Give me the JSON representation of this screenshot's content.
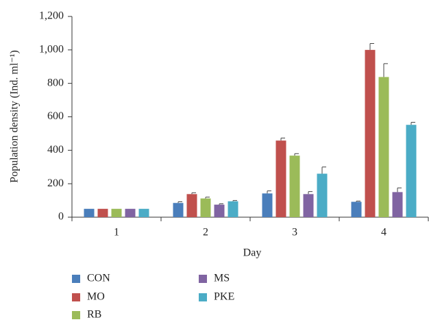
{
  "chart_data": {
    "type": "bar",
    "y_label": "Population density (Ind. ml⁻¹)",
    "x_label": "Day",
    "categories": [
      "1",
      "2",
      "3",
      "4"
    ],
    "series": [
      {
        "name": "CON",
        "color": "#4a7ebb",
        "values": [
          50,
          85,
          142,
          92
        ],
        "errors": [
          null,
          7,
          15,
          4
        ]
      },
      {
        "name": "MO",
        "color": "#c0504d",
        "values": [
          50,
          138,
          458,
          1000
        ],
        "errors": [
          null,
          8,
          15,
          38
        ]
      },
      {
        "name": "RB",
        "color": "#9bbb59",
        "values": [
          50,
          112,
          368,
          838
        ],
        "errors": [
          null,
          8,
          12,
          80
        ]
      },
      {
        "name": "MS",
        "color": "#8064a2",
        "values": [
          50,
          75,
          138,
          150
        ],
        "errors": [
          null,
          5,
          15,
          25
        ]
      },
      {
        "name": "PKE",
        "color": "#4bacc6",
        "values": [
          50,
          95,
          260,
          552
        ],
        "errors": [
          null,
          5,
          40,
          15
        ]
      }
    ],
    "ylim": [
      0,
      1200
    ],
    "yticks": [
      0,
      200,
      400,
      600,
      800,
      {
        "value": 1000,
        "label": "1,000"
      },
      {
        "value": 1200,
        "label": "1,200"
      }
    ],
    "grid": false
  }
}
